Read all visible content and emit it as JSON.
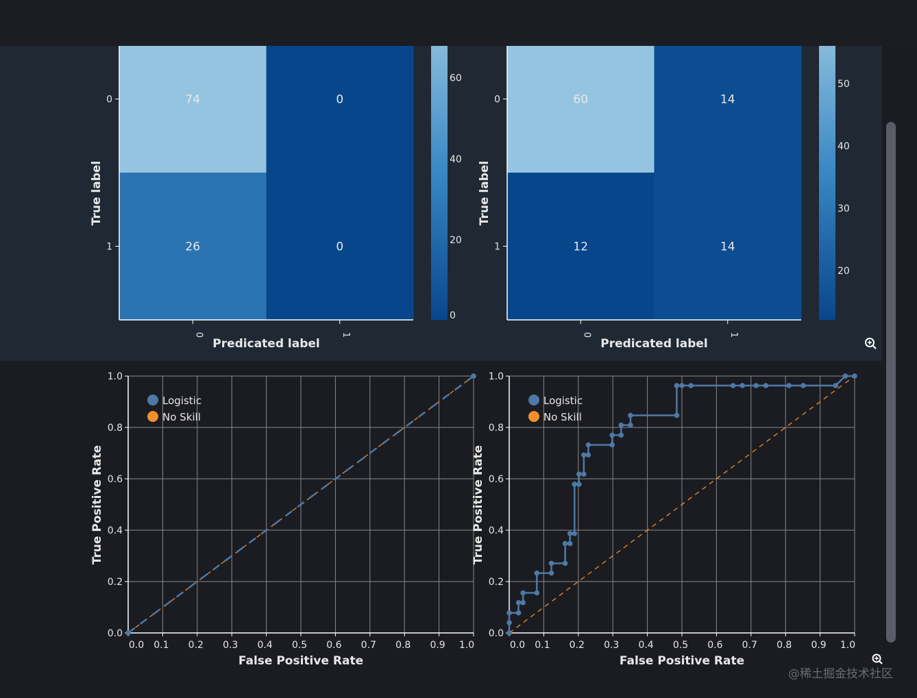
{
  "watermark": "@稀土掘金技术社区",
  "icons": {
    "zoom": "zoom-in-icon"
  },
  "colors": {
    "logistic": "#4e79a7",
    "noskill": "#f28e2b",
    "grid": "#8a8a8a",
    "cmap_low": "#08468c",
    "cmap_high": "#95c4e0"
  },
  "chart_data": [
    {
      "type": "heatmap",
      "title": "",
      "xlabel": "Predicated label",
      "ylabel": "True label",
      "x_ticks": [
        "0",
        "1"
      ],
      "y_ticks": [
        "0",
        "1"
      ],
      "values": [
        [
          74,
          0
        ],
        [
          26,
          0
        ]
      ],
      "colorbar": {
        "range": [
          0,
          74
        ],
        "ticks": [
          "0",
          "20",
          "40",
          "60"
        ]
      }
    },
    {
      "type": "heatmap",
      "title": "",
      "xlabel": "Predicated label",
      "ylabel": "True label",
      "x_ticks": [
        "0",
        "1"
      ],
      "y_ticks": [
        "0",
        "1"
      ],
      "values": [
        [
          60,
          14
        ],
        [
          12,
          14
        ]
      ],
      "colorbar": {
        "range": [
          12,
          60
        ],
        "ticks": [
          "20",
          "30",
          "40",
          "50"
        ]
      }
    },
    {
      "type": "line",
      "title": "",
      "xlabel": "False Positive Rate",
      "ylabel": "True Positive Rate",
      "xlim": [
        0,
        1
      ],
      "ylim": [
        0,
        1
      ],
      "grid": true,
      "legend_placement": "top-left",
      "x_ticks": [
        "0.0",
        "0.1",
        "0.2",
        "0.3",
        "0.4",
        "0.5",
        "0.6",
        "0.7",
        "0.8",
        "0.9",
        "1.0"
      ],
      "y_ticks": [
        "0.0",
        "0.2",
        "0.4",
        "0.6",
        "0.8",
        "1.0"
      ],
      "series": [
        {
          "name": "Logistic",
          "style": "solid-markers",
          "x": [
            0,
            1
          ],
          "y": [
            0,
            1
          ]
        },
        {
          "name": "No Skill",
          "style": "dashed",
          "x": [
            0,
            1
          ],
          "y": [
            0,
            1
          ]
        }
      ]
    },
    {
      "type": "line",
      "title": "",
      "xlabel": "False Positive Rate",
      "ylabel": "True Positive Rate",
      "xlim": [
        0,
        1
      ],
      "ylim": [
        0,
        1
      ],
      "grid": true,
      "legend_placement": "top-left",
      "x_ticks": [
        "0.0",
        "0.1",
        "0.2",
        "0.3",
        "0.4",
        "0.5",
        "0.6",
        "0.7",
        "0.8",
        "0.9",
        "1.0"
      ],
      "y_ticks": [
        "0.0",
        "0.2",
        "0.4",
        "0.6",
        "0.8",
        "1.0"
      ],
      "series": [
        {
          "name": "Logistic",
          "style": "solid-markers",
          "x": [
            0,
            0,
            0,
            0.027,
            0.027,
            0.04,
            0.04,
            0.08,
            0.08,
            0.122,
            0.122,
            0.162,
            0.162,
            0.176,
            0.176,
            0.189,
            0.189,
            0.202,
            0.202,
            0.216,
            0.216,
            0.229,
            0.229,
            0.298,
            0.298,
            0.324,
            0.324,
            0.351,
            0.351,
            0.485,
            0.485,
            0.5,
            0.526,
            0.648,
            0.675,
            0.715,
            0.743,
            0.81,
            0.851,
            0.945,
            0.973,
            1.0
          ],
          "y": [
            0,
            0.04,
            0.078,
            0.078,
            0.118,
            0.118,
            0.156,
            0.156,
            0.233,
            0.233,
            0.271,
            0.271,
            0.348,
            0.348,
            0.387,
            0.387,
            0.579,
            0.579,
            0.618,
            0.618,
            0.693,
            0.693,
            0.732,
            0.732,
            0.77,
            0.77,
            0.809,
            0.809,
            0.847,
            0.847,
            0.963,
            0.963,
            0.963,
            0.963,
            0.963,
            0.963,
            0.963,
            0.963,
            0.963,
            0.963,
            1.0,
            1.0
          ]
        },
        {
          "name": "No Skill",
          "style": "dashed",
          "x": [
            0,
            1
          ],
          "y": [
            0,
            1
          ]
        }
      ]
    }
  ]
}
